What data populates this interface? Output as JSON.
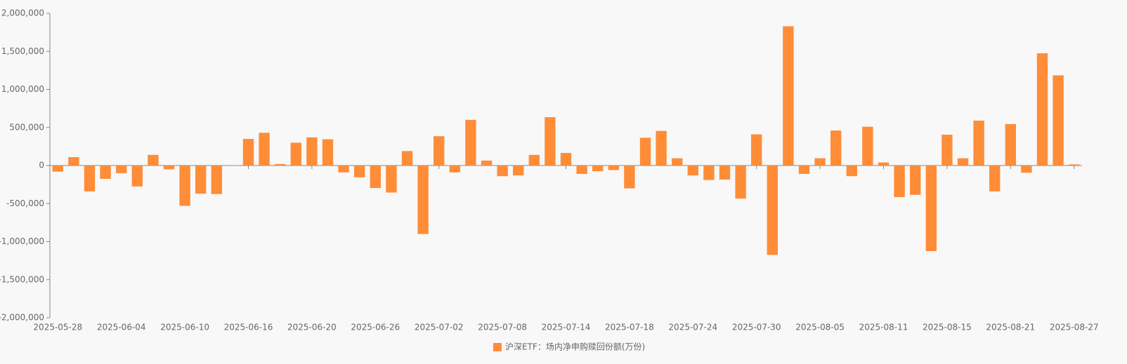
{
  "chart_data": {
    "type": "bar",
    "categories": [
      "2025-05-28",
      null,
      null,
      null,
      "2025-06-04",
      null,
      null,
      null,
      "2025-06-10",
      null,
      null,
      null,
      "2025-06-16",
      null,
      null,
      null,
      "2025-06-20",
      null,
      null,
      null,
      "2025-06-26",
      null,
      null,
      null,
      "2025-07-02",
      null,
      null,
      null,
      "2025-07-08",
      null,
      null,
      null,
      "2025-07-14",
      null,
      null,
      null,
      "2025-07-18",
      null,
      null,
      null,
      "2025-07-24",
      null,
      null,
      null,
      "2025-07-30",
      null,
      null,
      null,
      "2025-08-05",
      null,
      null,
      null,
      "2025-08-11",
      null,
      null,
      null,
      "2025-08-15",
      null,
      null,
      null,
      "2025-08-21",
      null,
      null,
      null,
      "2025-08-27"
    ],
    "series": [
      {
        "name": "沪深ETF：场内净申购赎回份额(万份)",
        "color": "#ff8c37",
        "values": [
          -80000,
          110000,
          -340000,
          -175000,
          -100000,
          -275000,
          140000,
          -50000,
          -530000,
          -370000,
          -375000,
          3000,
          350000,
          430000,
          20000,
          300000,
          370000,
          345000,
          -90000,
          -155000,
          -295000,
          -355000,
          190000,
          -900000,
          385000,
          -90000,
          600000,
          65000,
          -140000,
          -130000,
          140000,
          635000,
          165000,
          -110000,
          -75000,
          -60000,
          -300000,
          365000,
          455000,
          95000,
          -130000,
          -190000,
          -185000,
          -435000,
          410000,
          -1175000,
          1830000,
          -110000,
          95000,
          460000,
          -140000,
          510000,
          40000,
          -415000,
          -385000,
          -1125000,
          405000,
          95000,
          590000,
          -340000,
          545000,
          -95000,
          1475000,
          1185000,
          15000
        ]
      }
    ],
    "ylim": [
      -2000000,
      2000000
    ],
    "yticks": [
      {
        "value": -2000000,
        "label": "-2,000,000"
      },
      {
        "value": -1500000,
        "label": "-1,500,000"
      },
      {
        "value": -1000000,
        "label": "-1,000,000"
      },
      {
        "value": -500000,
        "label": "-500,000"
      },
      0,
      {
        "value": 500000,
        "label": "500,000"
      },
      {
        "value": 1000000,
        "label": "1,000,000"
      },
      {
        "value": 1500000,
        "label": "1,500,000"
      },
      {
        "value": 2000000,
        "label": "2,000,000"
      }
    ],
    "legend": "bottom"
  }
}
